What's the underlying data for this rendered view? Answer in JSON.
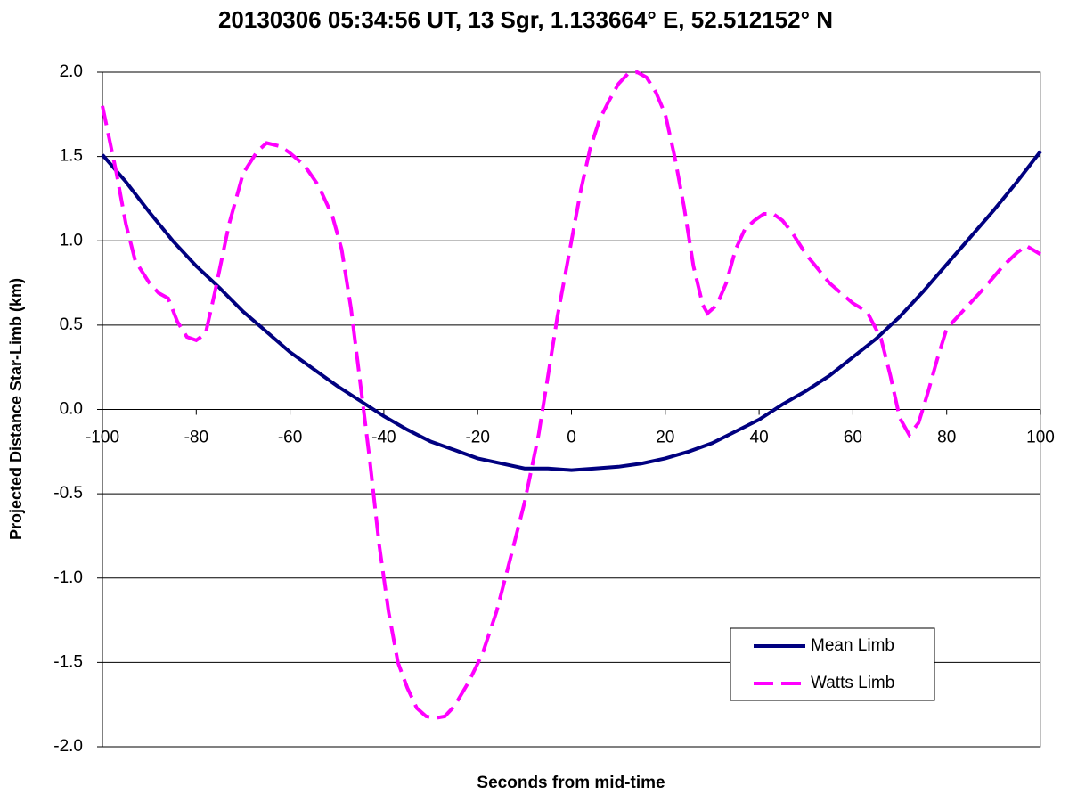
{
  "chart_data": {
    "type": "line",
    "title": "20130306 05:34:56 UT, 13 Sgr, 1.133664° E, 52.512152° N",
    "x_label": "Seconds from mid-time",
    "y_label": "Projected Distance Star-Limb (km)",
    "xlim": [
      -100,
      100
    ],
    "xticks": [
      -100,
      -80,
      -60,
      -40,
      -20,
      0,
      20,
      40,
      60,
      80,
      100
    ],
    "ylim": [
      -2,
      2
    ],
    "yticks": [
      {
        "value": -2,
        "label": "-2.0"
      },
      {
        "value": -1.5,
        "label": "-1.5"
      },
      {
        "value": -1,
        "label": "-1.0"
      },
      {
        "value": -0.5,
        "label": "-0.5"
      },
      {
        "value": 0,
        "label": "0.0"
      },
      {
        "value": 0.5,
        "label": "0.5"
      },
      {
        "value": 1,
        "label": "1.0"
      },
      {
        "value": 1.5,
        "label": "1.5"
      },
      {
        "value": 2,
        "label": "2.0"
      }
    ],
    "grid": true,
    "legend": "bottom-right",
    "series": [
      {
        "name": "Mean Limb",
        "color": "#000080",
        "dash": false,
        "x": [
          -100,
          -95,
          -90,
          -85,
          -80,
          -75,
          -70,
          -65,
          -60,
          -55,
          -50,
          -45,
          -40,
          -35,
          -30,
          -25,
          -20,
          -15,
          -10,
          -5,
          0,
          5,
          10,
          15,
          20,
          25,
          30,
          35,
          40,
          45,
          50,
          55,
          60,
          65,
          70,
          75,
          80,
          85,
          90,
          95,
          100
        ],
        "values": [
          1.51,
          1.35,
          1.17,
          1.0,
          0.85,
          0.72,
          0.58,
          0.46,
          0.34,
          0.24,
          0.14,
          0.05,
          -0.04,
          -0.12,
          -0.19,
          -0.24,
          -0.29,
          -0.32,
          -0.35,
          -0.35,
          -0.36,
          -0.35,
          -0.34,
          -0.32,
          -0.29,
          -0.25,
          -0.2,
          -0.13,
          -0.06,
          0.03,
          0.11,
          0.2,
          0.31,
          0.42,
          0.55,
          0.7,
          0.86,
          1.02,
          1.18,
          1.35,
          1.53
        ]
      },
      {
        "name": "Watts Limb",
        "color": "#ff00ff",
        "dash": true,
        "x": [
          -100,
          -97,
          -95,
          -93,
          -90,
          -88,
          -86,
          -84,
          -82,
          -80,
          -78,
          -76,
          -73,
          -70,
          -67,
          -65,
          -62,
          -60,
          -57,
          -54,
          -51,
          -49,
          -47,
          -45,
          -43,
          -41,
          -39,
          -37,
          -35,
          -33,
          -31,
          -29,
          -27,
          -25,
          -22,
          -19,
          -16,
          -13,
          -10,
          -7,
          -5,
          -3,
          0,
          2,
          4,
          6,
          8,
          10,
          12,
          14,
          16,
          18,
          20,
          22,
          24,
          26,
          28,
          29,
          31,
          33,
          35,
          37,
          39,
          41,
          43,
          45,
          47,
          50,
          55,
          60,
          63,
          66,
          68,
          70,
          72,
          74,
          76,
          78,
          80,
          84,
          88,
          92,
          95,
          97,
          100
        ],
        "values": [
          1.8,
          1.4,
          1.1,
          0.88,
          0.75,
          0.69,
          0.66,
          0.52,
          0.43,
          0.41,
          0.45,
          0.7,
          1.1,
          1.4,
          1.53,
          1.58,
          1.56,
          1.52,
          1.45,
          1.33,
          1.15,
          0.95,
          0.6,
          0.15,
          -0.3,
          -0.8,
          -1.2,
          -1.5,
          -1.65,
          -1.77,
          -1.82,
          -1.83,
          -1.82,
          -1.76,
          -1.62,
          -1.45,
          -1.2,
          -0.88,
          -0.55,
          -0.15,
          0.2,
          0.55,
          1.0,
          1.3,
          1.55,
          1.72,
          1.83,
          1.93,
          1.99,
          2.0,
          1.97,
          1.88,
          1.75,
          1.5,
          1.2,
          0.85,
          0.62,
          0.57,
          0.62,
          0.75,
          0.95,
          1.07,
          1.12,
          1.16,
          1.16,
          1.12,
          1.05,
          0.92,
          0.75,
          0.63,
          0.58,
          0.42,
          0.2,
          -0.05,
          -0.15,
          -0.08,
          0.1,
          0.3,
          0.48,
          0.6,
          0.72,
          0.85,
          0.93,
          0.97,
          0.92
        ]
      }
    ]
  }
}
